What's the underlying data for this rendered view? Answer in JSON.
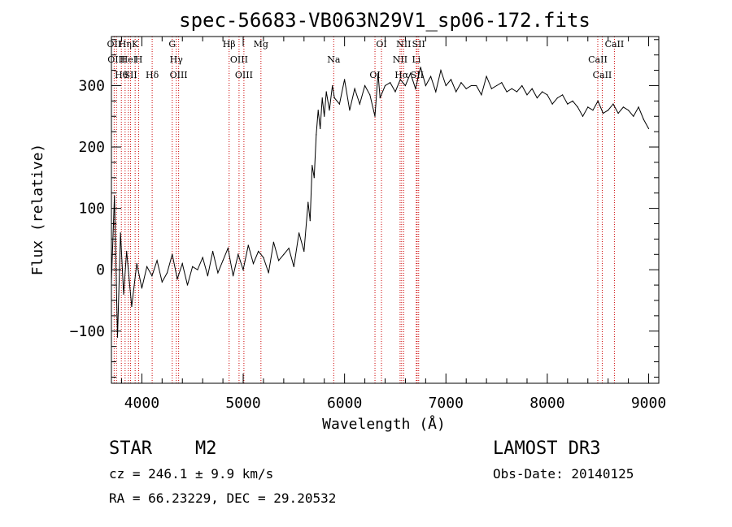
{
  "chart_data": {
    "type": "line",
    "title": "spec-56683-VB063N29V1_sp06-172.fits",
    "xlabel": "Wavelength (Å)",
    "ylabel": "Flux (relative)",
    "xlim": [
      3700,
      9100
    ],
    "ylim": [
      -185,
      380
    ],
    "xticks": [
      4000,
      5000,
      6000,
      7000,
      8000,
      9000
    ],
    "xtick_labels": [
      "4000",
      "5000",
      "6000",
      "7000",
      "8000",
      "9000"
    ],
    "yticks": [
      -100,
      0,
      100,
      200,
      300
    ],
    "ytick_labels": [
      "−100",
      "0",
      "100",
      "200",
      "300"
    ],
    "series": [
      {
        "name": "flux",
        "x": [
          3700,
          3730,
          3760,
          3790,
          3820,
          3850,
          3900,
          3950,
          4000,
          4050,
          4100,
          4150,
          4200,
          4250,
          4300,
          4350,
          4400,
          4450,
          4500,
          4550,
          4600,
          4650,
          4700,
          4750,
          4800,
          4850,
          4900,
          4950,
          5000,
          5050,
          5100,
          5150,
          5200,
          5250,
          5300,
          5350,
          5400,
          5450,
          5500,
          5550,
          5600,
          5640,
          5660,
          5680,
          5700,
          5720,
          5740,
          5760,
          5780,
          5800,
          5820,
          5850,
          5880,
          5900,
          5950,
          6000,
          6050,
          6100,
          6150,
          6200,
          6250,
          6300,
          6330,
          6350,
          6400,
          6450,
          6500,
          6550,
          6600,
          6650,
          6700,
          6750,
          6800,
          6850,
          6900,
          6950,
          7000,
          7050,
          7100,
          7150,
          7200,
          7250,
          7300,
          7350,
          7400,
          7450,
          7500,
          7550,
          7600,
          7650,
          7700,
          7750,
          7800,
          7850,
          7900,
          7950,
          8000,
          8050,
          8100,
          8150,
          8200,
          8250,
          8300,
          8350,
          8400,
          8450,
          8500,
          8550,
          8600,
          8650,
          8700,
          8750,
          8800,
          8850,
          8900,
          8950,
          9000
        ],
        "y": [
          -20,
          120,
          -110,
          60,
          -40,
          30,
          -60,
          10,
          -30,
          5,
          -10,
          15,
          -20,
          -5,
          25,
          -15,
          10,
          -25,
          5,
          0,
          20,
          -10,
          30,
          -5,
          15,
          35,
          -10,
          25,
          0,
          40,
          10,
          30,
          20,
          -5,
          45,
          15,
          25,
          35,
          5,
          60,
          30,
          110,
          80,
          170,
          150,
          220,
          260,
          230,
          280,
          250,
          290,
          260,
          300,
          280,
          270,
          310,
          260,
          295,
          270,
          300,
          285,
          250,
          320,
          280,
          300,
          305,
          290,
          310,
          300,
          320,
          295,
          330,
          300,
          315,
          290,
          325,
          300,
          310,
          290,
          305,
          295,
          300,
          300,
          285,
          315,
          295,
          300,
          305,
          290,
          295,
          290,
          300,
          285,
          295,
          280,
          290,
          285,
          270,
          280,
          285,
          270,
          275,
          265,
          250,
          265,
          260,
          275,
          255,
          260,
          270,
          255,
          265,
          260,
          250,
          265,
          245,
          230
        ]
      }
    ],
    "line_markers": [
      {
        "wavelength": 3727,
        "label": "OII"
      },
      {
        "wavelength": 3750,
        "label": "OIII"
      },
      {
        "wavelength": 3798,
        "label": "Hθ"
      },
      {
        "wavelength": 3835,
        "label": "Hη"
      },
      {
        "wavelength": 3868,
        "label": "HeI"
      },
      {
        "wavelength": 3889,
        "label": "SII"
      },
      {
        "wavelength": 3934,
        "label": "K"
      },
      {
        "wavelength": 3969,
        "label": "H"
      },
      {
        "wavelength": 4102,
        "label": "Hδ"
      },
      {
        "wavelength": 4300,
        "label": "G"
      },
      {
        "wavelength": 4340,
        "label": "Hγ"
      },
      {
        "wavelength": 4363,
        "label": "OIII"
      },
      {
        "wavelength": 4861,
        "label": "Hβ"
      },
      {
        "wavelength": 4959,
        "label": "OIII"
      },
      {
        "wavelength": 5007,
        "label": "OIII"
      },
      {
        "wavelength": 5175,
        "label": "Mg"
      },
      {
        "wavelength": 5893,
        "label": "Na"
      },
      {
        "wavelength": 6300,
        "label": "OI"
      },
      {
        "wavelength": 6364,
        "label": "OI"
      },
      {
        "wavelength": 6548,
        "label": "NII"
      },
      {
        "wavelength": 6563,
        "label": "Hα"
      },
      {
        "wavelength": 6583,
        "label": "NII"
      },
      {
        "wavelength": 6708,
        "label": "Li"
      },
      {
        "wavelength": 6716,
        "label": "SII"
      },
      {
        "wavelength": 6731,
        "label": "SII"
      },
      {
        "wavelength": 8498,
        "label": "CaII"
      },
      {
        "wavelength": 8542,
        "label": "CaII"
      },
      {
        "wavelength": 8662,
        "label": "CaII"
      }
    ],
    "marker_color": "#cc0000",
    "line_color": "#000000"
  },
  "info": {
    "object_class": "STAR",
    "subclass": "M2",
    "survey": "LAMOST DR3",
    "cz": "cz = 246.1 ± 9.9 km/s",
    "obs_date": "Obs-Date: 20140125",
    "coords": "RA =  66.23229, DEC =  29.20532"
  }
}
